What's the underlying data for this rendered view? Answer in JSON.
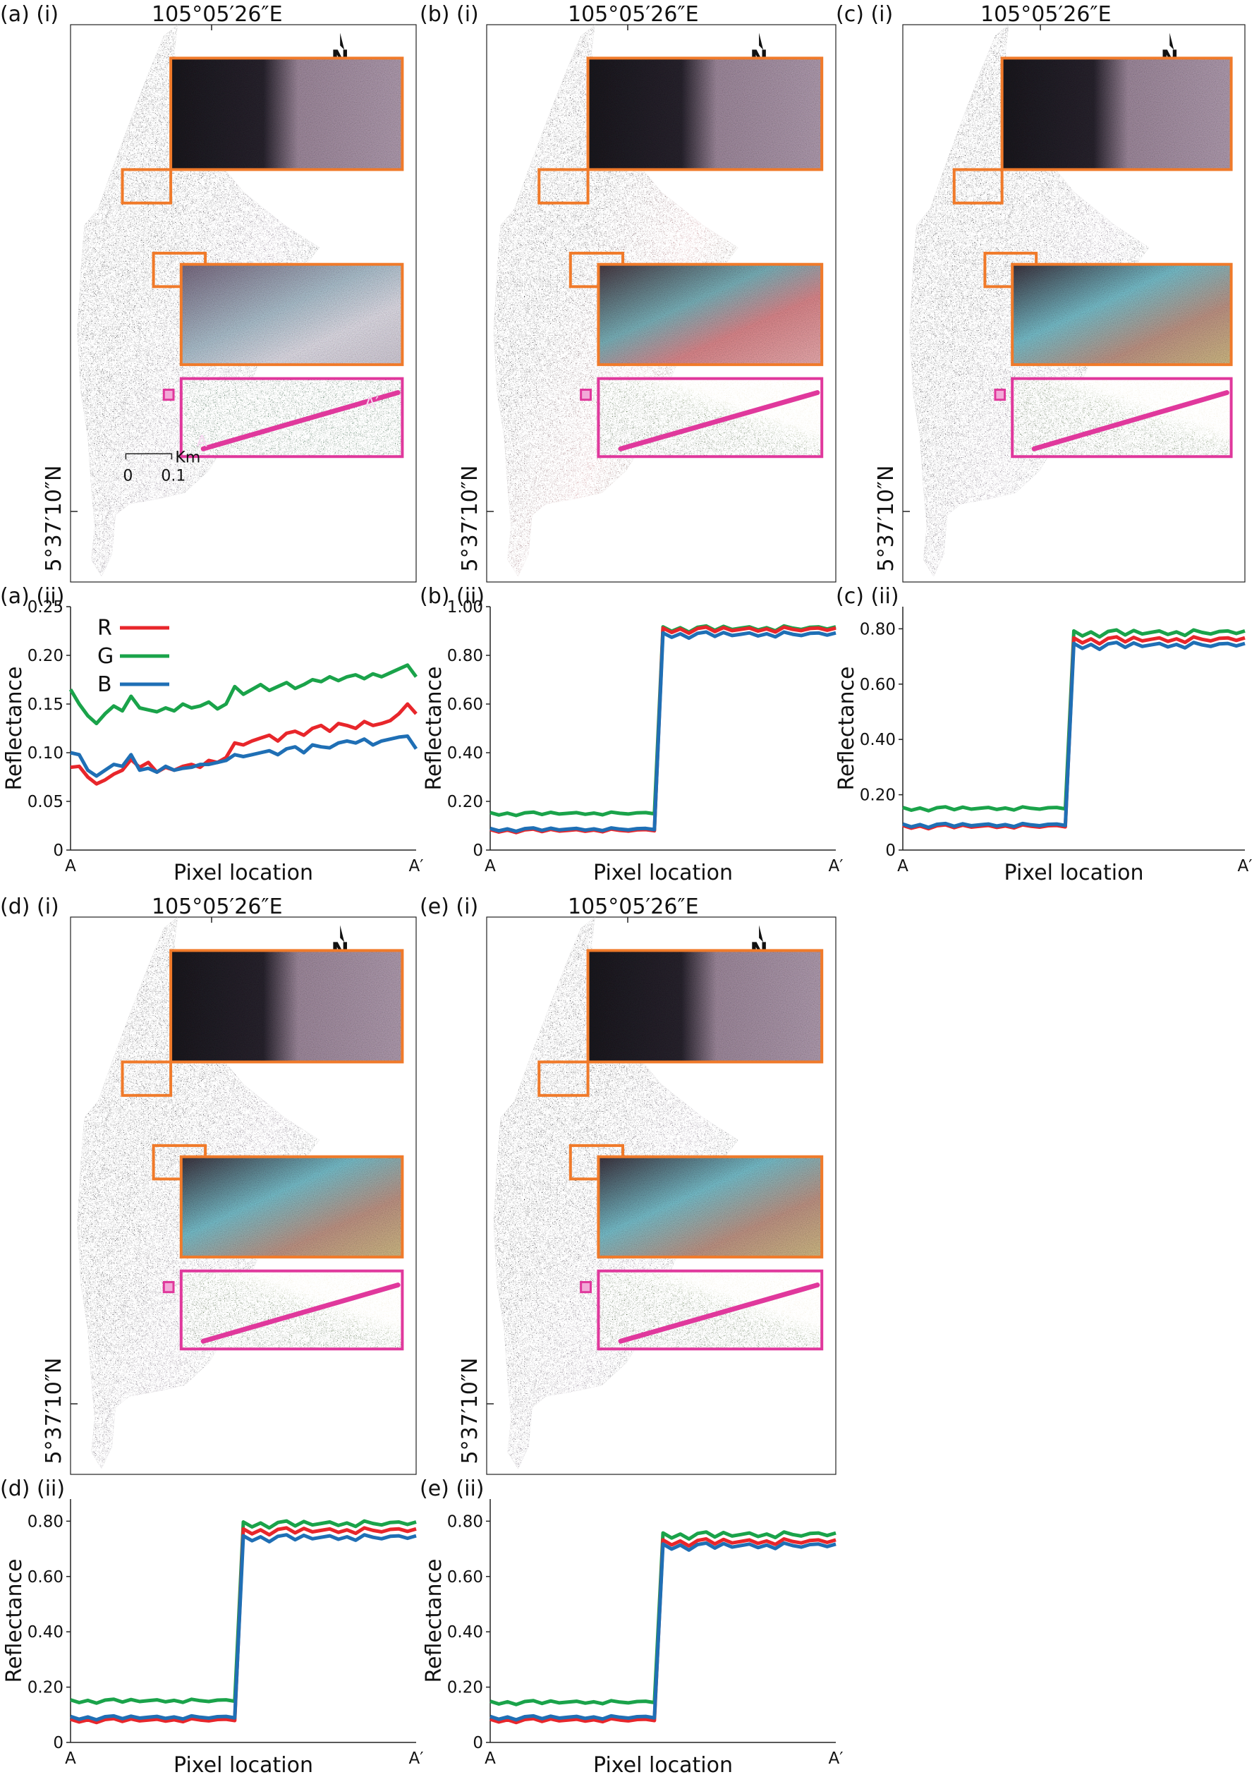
{
  "colors": {
    "R": "#e8262b",
    "G": "#1aa34a",
    "B": "#1f6fb5",
    "inset_orange": "#f07a2a",
    "inset_pink": "#e0389c"
  },
  "map_panels": [
    {
      "label": "(a) (i)",
      "lon": "105°05′26″E",
      "lat": "5°37′10″N",
      "north": "N",
      "scale": {
        "zero": "0",
        "value": "0.1",
        "unit": "Km"
      },
      "profile_start": "A",
      "profile_end": "A′",
      "variant": "a"
    },
    {
      "label": "(b) (i)",
      "lon": "105°05′26″E",
      "lat": "5°37′10″N",
      "north": "N",
      "variant": "b"
    },
    {
      "label": "(c) (i)",
      "lon": "105°05′26″E",
      "lat": "5°37′10″N",
      "north": "N",
      "variant": "c"
    },
    {
      "label": "(d) (i)",
      "lon": "105°05′26″E",
      "lat": "5°37′10″N",
      "north": "N",
      "variant": "d"
    },
    {
      "label": "(e) (i)",
      "lon": "105°05′26″E",
      "lat": "5°37′10″N",
      "north": "N",
      "variant": "e"
    }
  ],
  "chart_data": [
    {
      "panel": "(a) (ii)",
      "type": "line",
      "xlabel": "Pixel location",
      "ylabel": "Reflectance",
      "xtick_labels": [
        "A",
        "A′"
      ],
      "ylim": [
        0,
        0.25
      ],
      "yticks": [
        "0",
        "0.05",
        "0.10",
        "0.15",
        "0.20",
        "0.25"
      ],
      "ytick_values": [
        0,
        0.05,
        0.1,
        0.15,
        0.2,
        0.25
      ],
      "legend": [
        "R",
        "G",
        "B"
      ],
      "legend_position": "top-left",
      "series": [
        {
          "name": "R",
          "values": [
            0.085,
            0.086,
            0.075,
            0.068,
            0.072,
            0.078,
            0.082,
            0.093,
            0.085,
            0.09,
            0.08,
            0.085,
            0.082,
            0.086,
            0.088,
            0.085,
            0.092,
            0.09,
            0.095,
            0.11,
            0.108,
            0.112,
            0.115,
            0.118,
            0.112,
            0.12,
            0.122,
            0.118,
            0.125,
            0.128,
            0.122,
            0.13,
            0.128,
            0.125,
            0.132,
            0.128,
            0.13,
            0.133,
            0.14,
            0.15,
            0.14
          ]
        },
        {
          "name": "G",
          "values": [
            0.165,
            0.15,
            0.138,
            0.13,
            0.14,
            0.148,
            0.143,
            0.158,
            0.146,
            0.144,
            0.142,
            0.146,
            0.143,
            0.15,
            0.146,
            0.148,
            0.152,
            0.145,
            0.15,
            0.168,
            0.16,
            0.165,
            0.17,
            0.164,
            0.168,
            0.172,
            0.166,
            0.17,
            0.175,
            0.173,
            0.178,
            0.174,
            0.178,
            0.18,
            0.176,
            0.181,
            0.178,
            0.182,
            0.186,
            0.19,
            0.178
          ]
        },
        {
          "name": "B",
          "values": [
            0.1,
            0.098,
            0.082,
            0.076,
            0.082,
            0.088,
            0.086,
            0.098,
            0.082,
            0.084,
            0.08,
            0.086,
            0.082,
            0.084,
            0.085,
            0.088,
            0.088,
            0.09,
            0.092,
            0.098,
            0.096,
            0.098,
            0.1,
            0.102,
            0.098,
            0.104,
            0.106,
            0.1,
            0.108,
            0.106,
            0.105,
            0.11,
            0.112,
            0.11,
            0.114,
            0.108,
            0.112,
            0.114,
            0.116,
            0.117,
            0.104
          ]
        }
      ]
    },
    {
      "panel": "(b) (ii)",
      "type": "line",
      "xlabel": "Pixel location",
      "ylabel": "Reflectance",
      "xtick_labels": [
        "A",
        "A′"
      ],
      "ylim": [
        0,
        1.0
      ],
      "yticks": [
        "0",
        "0.20",
        "0.40",
        "0.60",
        "0.80",
        "1.00"
      ],
      "ytick_values": [
        0,
        0.2,
        0.4,
        0.6,
        0.8,
        1.0
      ],
      "step_at": 0.48,
      "series": [
        {
          "name": "R",
          "low": 0.08,
          "high": 0.905
        },
        {
          "name": "G",
          "low": 0.15,
          "high": 0.91
        },
        {
          "name": "B",
          "low": 0.085,
          "high": 0.885
        }
      ]
    },
    {
      "panel": "(c) (ii)",
      "type": "line",
      "xlabel": "Pixel location",
      "ylabel": "Reflectance",
      "xtick_labels": [
        "A",
        "A′"
      ],
      "ylim": [
        0,
        0.88
      ],
      "yticks": [
        "0",
        "0.20",
        "0.40",
        "0.60",
        "0.80"
      ],
      "ytick_values": [
        0,
        0.2,
        0.4,
        0.6,
        0.8
      ],
      "step_at": 0.48,
      "series": [
        {
          "name": "R",
          "low": 0.085,
          "high": 0.76
        },
        {
          "name": "G",
          "low": 0.15,
          "high": 0.785
        },
        {
          "name": "B",
          "low": 0.09,
          "high": 0.74
        }
      ]
    },
    {
      "panel": "(d) (ii)",
      "type": "line",
      "xlabel": "Pixel location",
      "ylabel": "Reflectance",
      "xtick_labels": [
        "A",
        "A′"
      ],
      "ylim": [
        0,
        0.88
      ],
      "yticks": [
        "0",
        "0.20",
        "0.40",
        "0.60",
        "0.80"
      ],
      "ytick_values": [
        0,
        0.2,
        0.4,
        0.6,
        0.8
      ],
      "step_at": 0.48,
      "series": [
        {
          "name": "R",
          "low": 0.08,
          "high": 0.765
        },
        {
          "name": "G",
          "low": 0.15,
          "high": 0.79
        },
        {
          "name": "B",
          "low": 0.09,
          "high": 0.74
        }
      ]
    },
    {
      "panel": "(e) (ii)",
      "type": "line",
      "xlabel": "Pixel location",
      "ylabel": "Reflectance",
      "xtick_labels": [
        "A",
        "A′"
      ],
      "ylim": [
        0,
        0.88
      ],
      "yticks": [
        "0",
        "0.20",
        "0.40",
        "0.60",
        "0.80"
      ],
      "ytick_values": [
        0,
        0.2,
        0.4,
        0.6,
        0.8
      ],
      "step_at": 0.48,
      "series": [
        {
          "name": "R",
          "low": 0.08,
          "high": 0.725
        },
        {
          "name": "G",
          "low": 0.145,
          "high": 0.75
        },
        {
          "name": "B",
          "low": 0.09,
          "high": 0.71
        }
      ]
    }
  ]
}
